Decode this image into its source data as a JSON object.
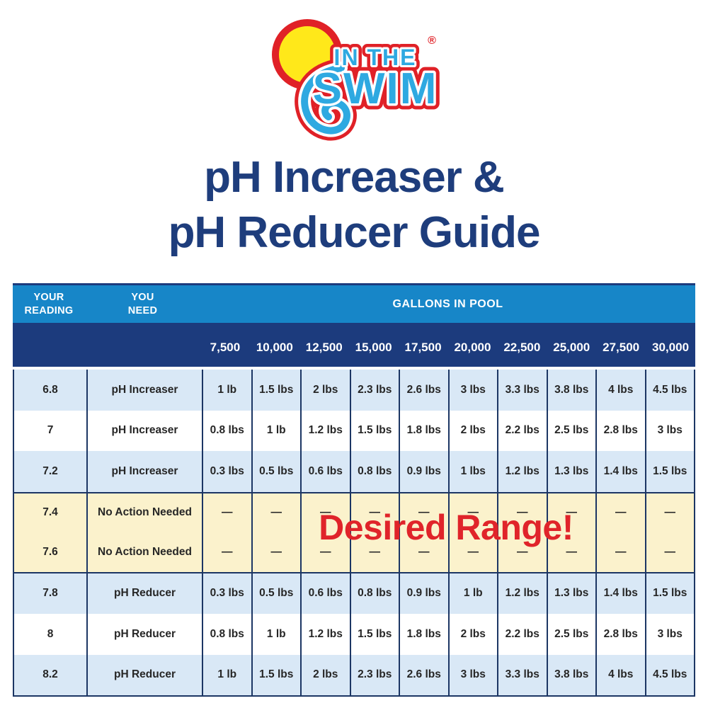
{
  "logo": {
    "line_top": "IN THE",
    "line_bottom": "SWIM",
    "registered_mark": "®"
  },
  "title_lines": [
    "pH Increaser &",
    "pH Reducer Guide"
  ],
  "chart_data": {
    "type": "table",
    "title": "pH Increaser & pH Reducer Guide",
    "header": {
      "reading_label": "YOUR\nREADING",
      "need_label": "YOU\nNEED",
      "gallons_label": "GALLONS IN POOL"
    },
    "gallon_columns": [
      "7,500",
      "10,000",
      "12,500",
      "15,000",
      "17,500",
      "20,000",
      "22,500",
      "25,000",
      "27,500",
      "30,000"
    ],
    "rows": [
      {
        "reading": "6.8",
        "action": "pH Increaser",
        "bg": "blue",
        "values": [
          "1 lb",
          "1.5 lbs",
          "2 lbs",
          "2.3 lbs",
          "2.6 lbs",
          "3 lbs",
          "3.3 lbs",
          "3.8 lbs",
          "4 lbs",
          "4.5 lbs"
        ]
      },
      {
        "reading": "7",
        "action": "pH Increaser",
        "bg": "white",
        "values": [
          "0.8 lbs",
          "1 lb",
          "1.2 lbs",
          "1.5 lbs",
          "1.8 lbs",
          "2 lbs",
          "2.2 lbs",
          "2.5 lbs",
          "2.8 lbs",
          "3 lbs"
        ]
      },
      {
        "reading": "7.2",
        "action": "pH Increaser",
        "bg": "blue",
        "values": [
          "0.3 lbs",
          "0.5 lbs",
          "0.6 lbs",
          "0.8 lbs",
          "0.9 lbs",
          "1 lbs",
          "1.2 lbs",
          "1.3 lbs",
          "1.4 lbs",
          "1.5 lbs"
        ]
      },
      {
        "reading": "7.4",
        "action": "No Action Needed",
        "bg": "yellow",
        "values": [
          "—",
          "—",
          "—",
          "—",
          "—",
          "—",
          "—",
          "—",
          "—",
          "—"
        ]
      },
      {
        "reading": "7.6",
        "action": "No Action Needed",
        "bg": "yellow",
        "values": [
          "—",
          "—",
          "—",
          "—",
          "—",
          "—",
          "—",
          "—",
          "—",
          "—"
        ]
      },
      {
        "reading": "7.8",
        "action": "pH Reducer",
        "bg": "blue",
        "values": [
          "0.3 lbs",
          "0.5 lbs",
          "0.6 lbs",
          "0.8 lbs",
          "0.9 lbs",
          "1 lb",
          "1.2 lbs",
          "1.3 lbs",
          "1.4 lbs",
          "1.5 lbs"
        ]
      },
      {
        "reading": "8",
        "action": "pH Reducer",
        "bg": "white",
        "values": [
          "0.8 lbs",
          "1 lb",
          "1.2 lbs",
          "1.5 lbs",
          "1.8 lbs",
          "2 lbs",
          "2.2 lbs",
          "2.5 lbs",
          "2.8 lbs",
          "3 lbs"
        ]
      },
      {
        "reading": "8.2",
        "action": "pH Reducer",
        "bg": "blue",
        "values": [
          "1 lb",
          "1.5 lbs",
          "2 lbs",
          "2.3 lbs",
          "2.6 lbs",
          "3 lbs",
          "3.3 lbs",
          "3.8 lbs",
          "4 lbs",
          "4.5 lbs"
        ]
      }
    ],
    "overlay_text": "Desired Range!",
    "layout_hints": {
      "desired_range_rows": [
        "7.4",
        "7.6"
      ],
      "grid": "on",
      "legend": "none"
    }
  },
  "colors": {
    "header_blue": "#1786C8",
    "header_navy": "#1C3B7D",
    "row_blue": "#D9E8F6",
    "row_yellow": "#FBF2CC",
    "border_navy": "#1C3664",
    "title_navy": "#1E3D7C",
    "accent_red": "#E0242A",
    "logo_blue": "#2EA9E1",
    "logo_yellow": "#FFE81A",
    "logo_red": "#E02127"
  }
}
